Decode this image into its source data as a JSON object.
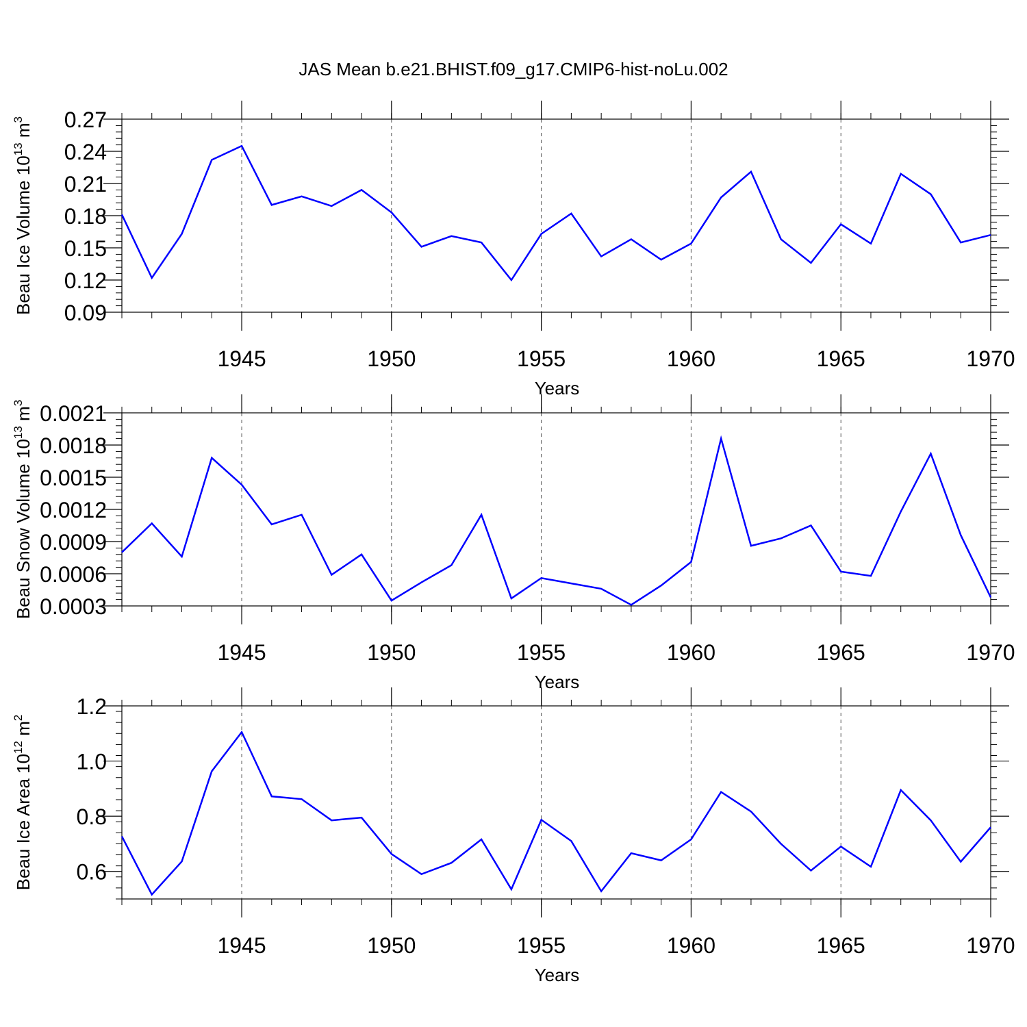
{
  "title": "JAS Mean b.e21.BHIST.f09_g17.CMIP6-hist-noLu.002",
  "colors": {
    "line": "#0000ff",
    "axis": "#000000",
    "grid": "#555555"
  },
  "chart_data": [
    {
      "type": "line",
      "ylabel_main": "Beau Ice Volume 10",
      "ylabel_exp": "13",
      "ylabel_unit": " m",
      "ylabel_unit_exp": "3",
      "xlabel": "Years",
      "xlim": [
        1941,
        1970
      ],
      "ylim": [
        0.09,
        0.27
      ],
      "xticks": [
        1945,
        1950,
        1955,
        1960,
        1965,
        1970
      ],
      "xtick_labels": [
        "1945",
        "1950",
        "1955",
        "1960",
        "1965",
        "1970"
      ],
      "yticks": [
        0.09,
        0.12,
        0.15,
        0.18,
        0.21,
        0.24,
        0.27
      ],
      "ytick_labels": [
        "0.09",
        "0.12",
        "0.15",
        "0.18",
        "0.21",
        "0.24",
        "0.27"
      ],
      "grid": "dashed vertical at major x ticks",
      "series": [
        {
          "x": [
            1941,
            1942,
            1943,
            1944,
            1945,
            1946,
            1947,
            1948,
            1949,
            1950,
            1951,
            1952,
            1953,
            1954,
            1955,
            1956,
            1957,
            1958,
            1959,
            1960,
            1961,
            1962,
            1963,
            1964,
            1965,
            1966,
            1967,
            1968,
            1969,
            1970
          ],
          "values": [
            0.181,
            0.122,
            0.163,
            0.232,
            0.245,
            0.19,
            0.198,
            0.189,
            0.204,
            0.183,
            0.151,
            0.161,
            0.155,
            0.12,
            0.163,
            0.182,
            0.142,
            0.158,
            0.139,
            0.154,
            0.197,
            0.221,
            0.158,
            0.136,
            0.172,
            0.154,
            0.219,
            0.2,
            0.155,
            0.162
          ]
        }
      ]
    },
    {
      "type": "line",
      "ylabel_main": "Beau Snow Volume 10",
      "ylabel_exp": "13",
      "ylabel_unit": " m",
      "ylabel_unit_exp": "3",
      "xlabel": "Years",
      "xlim": [
        1941,
        1970
      ],
      "ylim": [
        0.0003,
        0.0021
      ],
      "xticks": [
        1945,
        1950,
        1955,
        1960,
        1965,
        1970
      ],
      "xtick_labels": [
        "1945",
        "1950",
        "1955",
        "1960",
        "1965",
        "1970"
      ],
      "yticks": [
        0.0003,
        0.0006,
        0.0009,
        0.0012,
        0.0015,
        0.0018,
        0.0021
      ],
      "ytick_labels": [
        "0.0003",
        "0.0006",
        "0.0009",
        "0.0012",
        "0.0015",
        "0.0018",
        "0.0021"
      ],
      "grid": "dashed vertical at major x ticks",
      "series": [
        {
          "x": [
            1941,
            1942,
            1943,
            1944,
            1945,
            1946,
            1947,
            1948,
            1949,
            1950,
            1951,
            1952,
            1953,
            1954,
            1955,
            1956,
            1957,
            1958,
            1959,
            1960,
            1961,
            1962,
            1963,
            1964,
            1965,
            1966,
            1967,
            1968,
            1969,
            1970
          ],
          "values": [
            0.0008,
            0.00107,
            0.00076,
            0.00168,
            0.00143,
            0.00106,
            0.00115,
            0.00059,
            0.00078,
            0.00035,
            0.00052,
            0.00068,
            0.00115,
            0.00037,
            0.00056,
            0.00051,
            0.00046,
            0.00031,
            0.00049,
            0.00071,
            0.00186,
            0.00086,
            0.00093,
            0.00105,
            0.00062,
            0.00058,
            0.00118,
            0.00172,
            0.00096,
            0.00038
          ]
        }
      ]
    },
    {
      "type": "line",
      "ylabel_main": "Beau Ice Area 10",
      "ylabel_exp": "12",
      "ylabel_unit": " m",
      "ylabel_unit_exp": "2",
      "xlabel": "Years",
      "xlim": [
        1941,
        1970
      ],
      "ylim": [
        0.5,
        1.2
      ],
      "xticks": [
        1945,
        1950,
        1955,
        1960,
        1965,
        1970
      ],
      "xtick_labels": [
        "1945",
        "1950",
        "1955",
        "1960",
        "1965",
        "1970"
      ],
      "yticks": [
        0.6,
        0.8,
        1.0,
        1.2
      ],
      "ytick_labels": [
        "0.6",
        "0.8",
        "1.0",
        "1.2"
      ],
      "grid": "dashed vertical at major x ticks",
      "series": [
        {
          "x": [
            1941,
            1942,
            1943,
            1944,
            1945,
            1946,
            1947,
            1948,
            1949,
            1950,
            1951,
            1952,
            1953,
            1954,
            1955,
            1956,
            1957,
            1958,
            1959,
            1960,
            1961,
            1962,
            1963,
            1964,
            1965,
            1966,
            1967,
            1968,
            1969,
            1970
          ],
          "values": [
            0.727,
            0.516,
            0.636,
            0.963,
            1.105,
            0.872,
            0.862,
            0.785,
            0.795,
            0.663,
            0.59,
            0.631,
            0.716,
            0.535,
            0.787,
            0.71,
            0.528,
            0.666,
            0.64,
            0.716,
            0.888,
            0.817,
            0.7,
            0.603,
            0.69,
            0.617,
            0.895,
            0.785,
            0.635,
            0.76
          ]
        }
      ]
    }
  ]
}
